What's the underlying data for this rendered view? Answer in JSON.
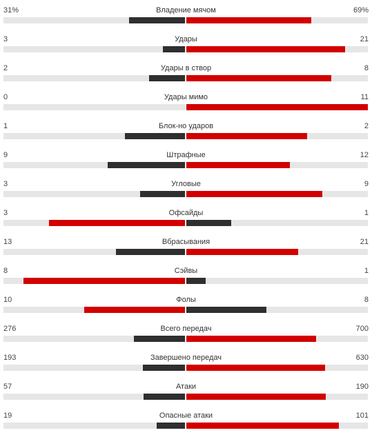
{
  "colors": {
    "winner": "#d20000",
    "loser": "#2f2f2f",
    "track": "#e6e6e6"
  },
  "stats": [
    {
      "label": "Владение мячом",
      "home": "31%",
      "away": "69%",
      "home_frac": 0.31,
      "away_frac": 0.69,
      "home_color": "#2f2f2f",
      "away_color": "#d20000"
    },
    {
      "label": "Удары",
      "home": "3",
      "away": "21",
      "home_frac": 0.125,
      "away_frac": 0.875,
      "home_color": "#2f2f2f",
      "away_color": "#d20000"
    },
    {
      "label": "Удары в створ",
      "home": "2",
      "away": "8",
      "home_frac": 0.2,
      "away_frac": 0.8,
      "home_color": "#2f2f2f",
      "away_color": "#d20000"
    },
    {
      "label": "Удары мимо",
      "home": "0",
      "away": "11",
      "home_frac": 0,
      "away_frac": 1,
      "home_color": "#2f2f2f",
      "away_color": "#d20000"
    },
    {
      "label": "Блок-но ударов",
      "home": "1",
      "away": "2",
      "home_frac": 0.333,
      "away_frac": 0.667,
      "home_color": "#2f2f2f",
      "away_color": "#d20000"
    },
    {
      "label": "Штрафные",
      "home": "9",
      "away": "12",
      "home_frac": 0.429,
      "away_frac": 0.571,
      "home_color": "#2f2f2f",
      "away_color": "#d20000"
    },
    {
      "label": "Угловые",
      "home": "3",
      "away": "9",
      "home_frac": 0.25,
      "away_frac": 0.75,
      "home_color": "#2f2f2f",
      "away_color": "#d20000"
    },
    {
      "label": "Офсайды",
      "home": "3",
      "away": "1",
      "home_frac": 0.75,
      "away_frac": 0.25,
      "home_color": "#d20000",
      "away_color": "#2f2f2f"
    },
    {
      "label": "Вбрасывания",
      "home": "13",
      "away": "21",
      "home_frac": 0.382,
      "away_frac": 0.618,
      "home_color": "#2f2f2f",
      "away_color": "#d20000"
    },
    {
      "label": "Сэйвы",
      "home": "8",
      "away": "1",
      "home_frac": 0.889,
      "away_frac": 0.111,
      "home_color": "#d20000",
      "away_color": "#2f2f2f"
    },
    {
      "label": "Фолы",
      "home": "10",
      "away": "8",
      "home_frac": 0.556,
      "away_frac": 0.444,
      "home_color": "#d20000",
      "away_color": "#2f2f2f"
    },
    {
      "label": "Всего передач",
      "home": "276",
      "away": "700",
      "home_frac": 0.283,
      "away_frac": 0.717,
      "home_color": "#2f2f2f",
      "away_color": "#d20000"
    },
    {
      "label": "Завершено передач",
      "home": "193",
      "away": "630",
      "home_frac": 0.234,
      "away_frac": 0.766,
      "home_color": "#2f2f2f",
      "away_color": "#d20000"
    },
    {
      "label": "Атаки",
      "home": "57",
      "away": "190",
      "home_frac": 0.231,
      "away_frac": 0.769,
      "home_color": "#2f2f2f",
      "away_color": "#d20000"
    },
    {
      "label": "Опасные атаки",
      "home": "19",
      "away": "101",
      "home_frac": 0.158,
      "away_frac": 0.842,
      "home_color": "#2f2f2f",
      "away_color": "#d20000"
    }
  ]
}
